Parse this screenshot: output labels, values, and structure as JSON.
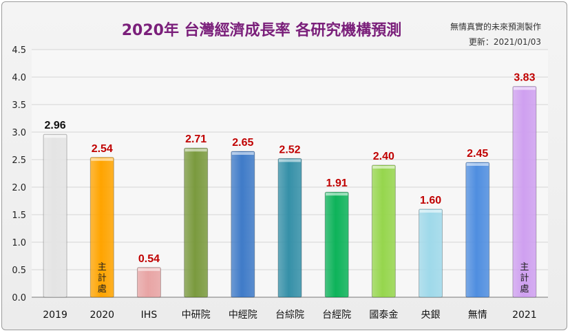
{
  "title": "2020年 台灣經濟成長率 各研究機構預測",
  "credit": "無情真實的未來預測製作",
  "updated": "更新：2021/01/03",
  "chart_data": {
    "type": "bar",
    "title": "2020年 台灣經濟成長率 各研究機構預測",
    "xlabel": "",
    "ylabel": "",
    "ylim": [
      0,
      4.5
    ],
    "yticks": [
      "0.0",
      "0.5",
      "1.0",
      "1.5",
      "2.0",
      "2.5",
      "3.0",
      "3.5",
      "4.0",
      "4.5"
    ],
    "grid": true,
    "categories": [
      "2019",
      "2020",
      "IHS",
      "中研院",
      "中經院",
      "台綜院",
      "台經院",
      "國泰金",
      "央銀",
      "無情",
      "2021"
    ],
    "values": [
      2.96,
      2.54,
      0.54,
      2.71,
      2.65,
      2.52,
      1.91,
      2.4,
      1.6,
      2.45,
      3.83
    ],
    "value_labels": [
      "2.96",
      "2.54",
      "0.54",
      "2.71",
      "2.65",
      "2.52",
      "1.91",
      "2.40",
      "1.60",
      "2.45",
      "3.83"
    ],
    "colors": [
      "#e4e4e4",
      "#ffa400",
      "#e8a4a4",
      "#7a9a3e",
      "#3f7bc8",
      "#3590a8",
      "#0db35a",
      "#96d64d",
      "#9fd9ea",
      "#4f8ee0",
      "#cfa0f0"
    ],
    "label_colors": [
      "#111111",
      "#c00000",
      "#c00000",
      "#c00000",
      "#c00000",
      "#c00000",
      "#c00000",
      "#c00000",
      "#c00000",
      "#c00000",
      "#c00000"
    ],
    "annotations": [
      {
        "category": "2020",
        "text": [
          "主",
          "計",
          "處"
        ]
      },
      {
        "category": "2021",
        "text": [
          "主",
          "計",
          "處"
        ]
      }
    ]
  }
}
